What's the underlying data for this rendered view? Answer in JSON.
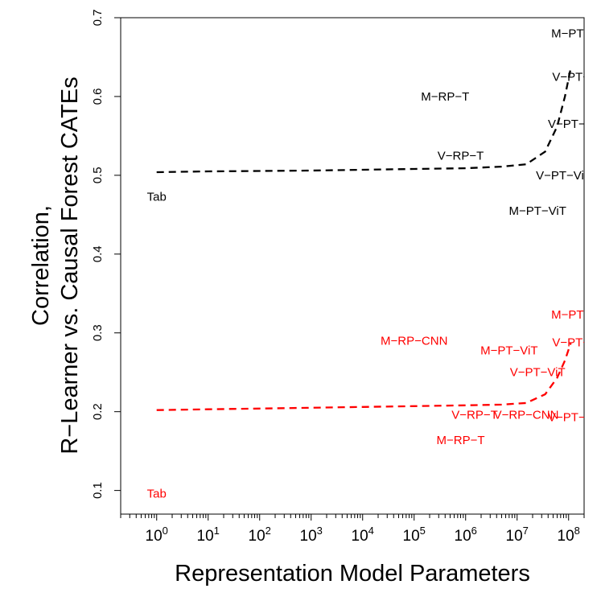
{
  "chart_data": {
    "type": "scatter",
    "title": "",
    "xlabel": "Representation Model Parameters",
    "ylabel_lines": [
      "Correlation,",
      "R−Learner vs. Causal Forest CATEs"
    ],
    "x_scale": "log10",
    "xlim": [
      0.2,
      200000000
    ],
    "ylim": [
      0.07,
      0.7
    ],
    "x_ticks": [
      {
        "value": 1,
        "base": "10",
        "exp": "0"
      },
      {
        "value": 10,
        "base": "10",
        "exp": "1"
      },
      {
        "value": 100,
        "base": "10",
        "exp": "2"
      },
      {
        "value": 1000,
        "base": "10",
        "exp": "3"
      },
      {
        "value": 10000,
        "base": "10",
        "exp": "4"
      },
      {
        "value": 100000,
        "base": "10",
        "exp": "5"
      },
      {
        "value": 1000000,
        "base": "10",
        "exp": "6"
      },
      {
        "value": 10000000,
        "base": "10",
        "exp": "7"
      },
      {
        "value": 100000000,
        "base": "10",
        "exp": "8"
      }
    ],
    "y_ticks": [
      "0.1",
      "0.2",
      "0.3",
      "0.4",
      "0.5",
      "0.6",
      "0.7"
    ],
    "grid": false,
    "series": [
      {
        "color": "#000000",
        "points": [
          {
            "label": "Tab",
            "x": 1,
            "y": 0.473
          },
          {
            "label": "M−RP−T",
            "x": 400000,
            "y": 0.6
          },
          {
            "label": "V−RP−T",
            "x": 800000,
            "y": 0.525
          },
          {
            "label": "V−PT−ViT",
            "x": 80000000,
            "y": 0.5
          },
          {
            "label": "M−PT−ViT",
            "x": 25000000,
            "y": 0.455
          },
          {
            "label": "M−PT−CNN",
            "x": 200000000,
            "y": 0.68
          },
          {
            "label": "V−PT−CNN",
            "x": 200000000,
            "y": 0.625
          },
          {
            "label": "V−PT−VAu",
            "x": 150000000,
            "y": 0.565
          }
        ],
        "trend": {
          "x": [
            1,
            10,
            100,
            1000,
            10000,
            100000,
            1000000,
            5000000,
            15000000,
            35000000,
            60000000,
            85000000,
            110000000
          ],
          "y": [
            0.504,
            0.505,
            0.5055,
            0.506,
            0.507,
            0.508,
            0.509,
            0.511,
            0.514,
            0.53,
            0.562,
            0.6,
            0.636
          ]
        }
      },
      {
        "color": "#ff0000",
        "points": [
          {
            "label": "Tab",
            "x": 1,
            "y": 0.096
          },
          {
            "label": "M−RP−CNN",
            "x": 100000,
            "y": 0.29
          },
          {
            "label": "M−PT−ViT",
            "x": 7000000,
            "y": 0.278
          },
          {
            "label": "V−PT−ViT",
            "x": 25000000,
            "y": 0.25
          },
          {
            "label": "V−RP−T",
            "x": 1500000,
            "y": 0.196
          },
          {
            "label": "V−RP−CNN",
            "x": 15000000,
            "y": 0.196
          },
          {
            "label": "M−RP−T",
            "x": 800000,
            "y": 0.164
          },
          {
            "label": "M−PT−CNN",
            "x": 200000000,
            "y": 0.323
          },
          {
            "label": "V−PT−CNN",
            "x": 200000000,
            "y": 0.288
          },
          {
            "label": "V−PT−VAu",
            "x": 150000000,
            "y": 0.193
          }
        ],
        "trend": {
          "x": [
            1,
            10,
            100,
            1000,
            10000,
            100000,
            1000000,
            5000000,
            15000000,
            35000000,
            60000000,
            85000000,
            110000000
          ],
          "y": [
            0.202,
            0.203,
            0.204,
            0.205,
            0.206,
            0.207,
            0.208,
            0.209,
            0.211,
            0.222,
            0.243,
            0.265,
            0.287
          ]
        }
      }
    ]
  }
}
